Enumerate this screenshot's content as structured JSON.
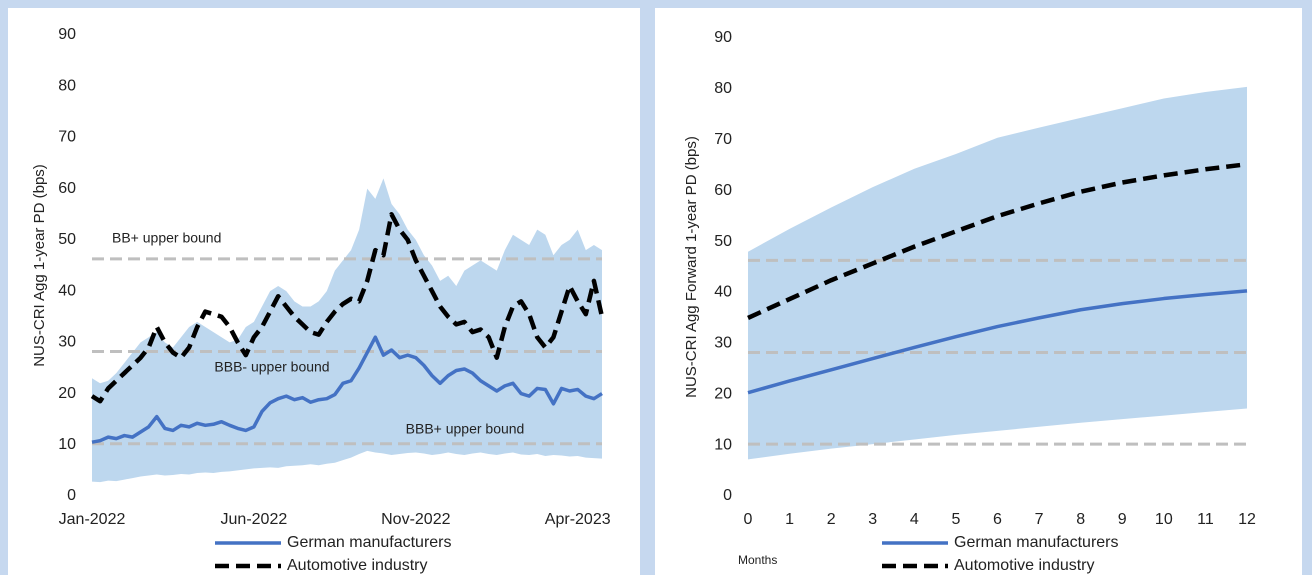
{
  "chart_data": [
    {
      "type": "line",
      "y_label": "NUS-CRI Agg 1-year PD (bps)",
      "categories": [
        "Jan-2022",
        null,
        null,
        null,
        null,
        null,
        null,
        null,
        null,
        null,
        null,
        null,
        null,
        null,
        null,
        null,
        null,
        null,
        null,
        null,
        "Jun-2022",
        null,
        null,
        null,
        null,
        null,
        null,
        null,
        null,
        null,
        null,
        null,
        null,
        null,
        null,
        null,
        null,
        null,
        null,
        null,
        "Nov-2022",
        null,
        null,
        null,
        null,
        null,
        null,
        null,
        null,
        null,
        null,
        null,
        null,
        null,
        null,
        null,
        null,
        null,
        null,
        null,
        "Apr-2023",
        null,
        null,
        null
      ],
      "band": {
        "color": "#bdd7ee",
        "upper": [
          23,
          22,
          22.5,
          24,
          26,
          28,
          30,
          31,
          32,
          30,
          29,
          31,
          33,
          34,
          33,
          32,
          31,
          30,
          30.5,
          33,
          34,
          37,
          40,
          41,
          40,
          38,
          37,
          37,
          38,
          40,
          44,
          46,
          48,
          52,
          60,
          58,
          62,
          57,
          55,
          52,
          50,
          47,
          45,
          42,
          43,
          41,
          44,
          45,
          46,
          45,
          44,
          48,
          51,
          50,
          49,
          52,
          51,
          47,
          49,
          50,
          52,
          48,
          49,
          48
        ],
        "lower": [
          2.8,
          2.7,
          3.0,
          2.9,
          3.2,
          3.5,
          3.8,
          4.0,
          4.2,
          4.0,
          4.1,
          4.3,
          4.2,
          4.5,
          4.6,
          4.5,
          4.7,
          4.8,
          5.0,
          5.2,
          5.4,
          5.5,
          5.6,
          5.5,
          5.8,
          5.9,
          6.0,
          6.2,
          6.0,
          6.3,
          6.5,
          7.0,
          7.5,
          8.2,
          8.8,
          8.5,
          8.3,
          8.0,
          8.2,
          8.4,
          8.5,
          8.3,
          8.0,
          8.2,
          8.5,
          8.2,
          8.0,
          8.3,
          8.5,
          8.2,
          8.0,
          8.3,
          8.5,
          8.1,
          8.0,
          8.2,
          7.8,
          8.0,
          7.9,
          7.7,
          7.8,
          7.5,
          7.4,
          7.3
        ]
      },
      "reference_lines": [
        {
          "value": 46.3,
          "label": "BB+ upper bound",
          "color": "#bfbfbf"
        },
        {
          "value": 28.2,
          "label": "BBB- upper bound",
          "color": "#bfbfbf"
        },
        {
          "value": 10.2,
          "label": "BBB+ upper bound",
          "color": "#bfbfbf"
        }
      ],
      "series": [
        {
          "name": "German manufacturers",
          "color": "#4472c4",
          "line_style": "solid",
          "values": [
            10.5,
            10.8,
            11.5,
            11.2,
            11.8,
            11.5,
            12.5,
            13.5,
            15.5,
            13.2,
            12.8,
            13.8,
            13.5,
            14.2,
            13.8,
            14.0,
            14.5,
            13.8,
            13.2,
            12.8,
            13.5,
            16.5,
            18.2,
            19.0,
            19.5,
            18.8,
            19.2,
            18.3,
            18.8,
            19.0,
            19.8,
            22.0,
            22.5,
            25.0,
            28.0,
            31.0,
            27.5,
            28.5,
            27.0,
            27.5,
            27.0,
            25.5,
            23.5,
            22.0,
            23.5,
            24.5,
            24.8,
            24.0,
            22.5,
            21.5,
            20.5,
            21.5,
            22.0,
            20.0,
            19.5,
            21.0,
            20.8,
            18.0,
            21.0,
            20.5,
            20.8,
            19.5,
            19.0,
            20.0
          ]
        },
        {
          "name": "Automotive industry",
          "color": "#000000",
          "line_style": "dashed",
          "values": [
            19.5,
            18.5,
            21,
            22.5,
            24,
            25.5,
            27,
            29,
            33,
            30,
            28,
            27,
            29,
            33,
            36,
            35.5,
            35,
            33,
            30,
            27.5,
            31,
            33,
            36,
            39,
            37,
            35,
            33.5,
            32,
            31.5,
            34,
            36,
            37.5,
            38.5,
            38,
            42,
            48,
            47,
            55,
            52,
            50,
            46,
            43,
            40,
            37,
            35,
            33.5,
            34,
            32,
            32.5,
            31,
            27,
            33,
            37,
            38,
            35.5,
            31,
            29,
            31,
            36,
            41,
            38,
            35.5,
            42,
            35
          ]
        }
      ],
      "ylim": [
        0,
        90
      ],
      "yticks": [
        0,
        10,
        20,
        30,
        40,
        50,
        60,
        70,
        80,
        90
      ]
    },
    {
      "type": "line",
      "y_label": "NUS-CRI Agg Forward 1-year PD (bps)",
      "x_label": "Months",
      "x": [
        0,
        1,
        2,
        3,
        4,
        5,
        6,
        7,
        8,
        9,
        10,
        11,
        12
      ],
      "xlim": [
        0,
        12
      ],
      "xticks": [
        0,
        1,
        2,
        3,
        4,
        5,
        6,
        7,
        8,
        9,
        10,
        11,
        12
      ],
      "band": {
        "color": "#bdd7ee",
        "upper": [
          48,
          52.5,
          56.7,
          60.7,
          64.3,
          67.2,
          70.4,
          72.4,
          74.3,
          76.2,
          78.1,
          79.4,
          80.4
        ],
        "lower": [
          7.2,
          8.3,
          9.3,
          10.2,
          11.1,
          12,
          12.8,
          13.6,
          14.4,
          15.1,
          15.8,
          16.5,
          17.2
        ]
      },
      "reference_lines": [
        {
          "value": 46.3,
          "color": "#bfbfbf"
        },
        {
          "value": 28.2,
          "color": "#bfbfbf"
        },
        {
          "value": 10.2,
          "color": "#bfbfbf"
        }
      ],
      "series": [
        {
          "name": "German manufacturers",
          "color": "#4472c4",
          "line_style": "solid",
          "values": [
            20.3,
            22.6,
            24.8,
            27,
            29.2,
            31.3,
            33.3,
            35,
            36.6,
            37.8,
            38.8,
            39.6,
            40.3
          ]
        },
        {
          "name": "Automotive industry",
          "color": "#000000",
          "line_style": "dashed",
          "values": [
            35,
            38.7,
            42.4,
            45.7,
            49,
            52,
            55,
            57.5,
            59.8,
            61.6,
            63,
            64.2,
            65.2
          ]
        }
      ],
      "ylim": [
        0,
        90
      ],
      "yticks": [
        0,
        10,
        20,
        30,
        40,
        50,
        60,
        70,
        80,
        90
      ]
    }
  ]
}
